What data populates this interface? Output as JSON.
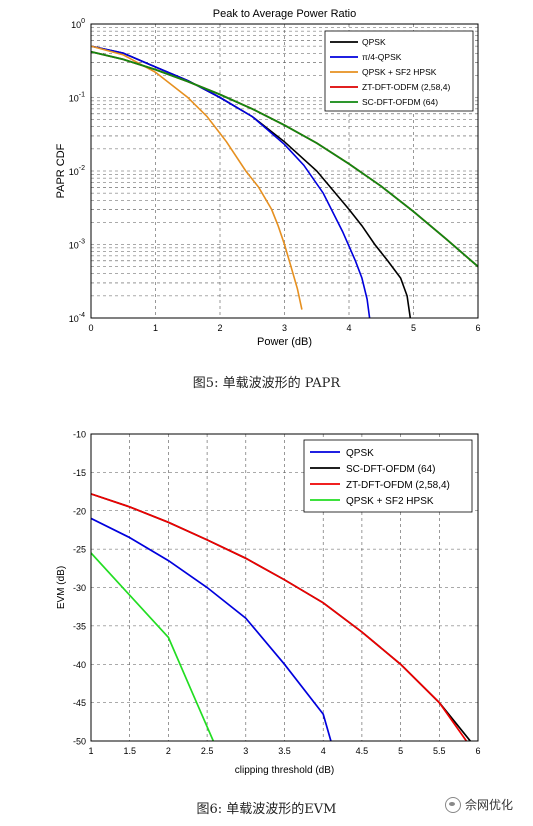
{
  "chart_data": [
    {
      "type": "line",
      "title": "Peak to Average Power Ratio",
      "xlabel": "Power (dB)",
      "ylabel": "PAPR CDF",
      "xlim": [
        0,
        6
      ],
      "ylim": [
        0.0001,
        1
      ],
      "yscale": "log",
      "grid": true,
      "legend_position": "top-right",
      "x_ticks": [
        "0",
        "1",
        "2",
        "3",
        "4",
        "5",
        "6"
      ],
      "y_tick_labels": [
        {
          "base": "10",
          "exp": "-4",
          "value": 0.0001
        },
        {
          "base": "10",
          "exp": "-3",
          "value": 0.001
        },
        {
          "base": "10",
          "exp": "-2",
          "value": 0.01
        },
        {
          "base": "10",
          "exp": "-1",
          "value": 0.1
        },
        {
          "base": "10",
          "exp": "0",
          "value": 1
        }
      ],
      "series": [
        {
          "name": "QPSK",
          "color": "#000000",
          "x": [
            0,
            0.5,
            1,
            1.5,
            2,
            2.5,
            3,
            3.5,
            4,
            4.2,
            4.4,
            4.6,
            4.8,
            4.9,
            4.95
          ],
          "y": [
            0.5,
            0.4,
            0.26,
            0.17,
            0.1,
            0.055,
            0.025,
            0.01,
            0.003,
            0.0018,
            0.001,
            0.0006,
            0.00035,
            0.0002,
            0.0001
          ]
        },
        {
          "name": "π/4-QPSK",
          "color": "#0000dd",
          "x": [
            0,
            0.5,
            1,
            1.5,
            2,
            2.5,
            3,
            3.3,
            3.6,
            3.9,
            4.1,
            4.2,
            4.28,
            4.32
          ],
          "y": [
            0.5,
            0.4,
            0.26,
            0.17,
            0.1,
            0.055,
            0.023,
            0.012,
            0.005,
            0.0015,
            0.0006,
            0.00035,
            0.00018,
            0.0001
          ]
        },
        {
          "name": "QPSK + SF2 HPSK",
          "color": "#e69020",
          "x": [
            0,
            0.5,
            1,
            1.5,
            1.8,
            2.1,
            2.4,
            2.6,
            2.8,
            2.9,
            3.0,
            3.1,
            3.2,
            3.27
          ],
          "y": [
            0.5,
            0.38,
            0.22,
            0.1,
            0.055,
            0.025,
            0.01,
            0.006,
            0.003,
            0.0018,
            0.001,
            0.0005,
            0.00025,
            0.00013
          ]
        },
        {
          "name": "ZT-DFT-ODFM (2,58,4)",
          "color": "#dd0000",
          "x": [
            0,
            0.5,
            1,
            1.5,
            2,
            2.5,
            3,
            3.5,
            4,
            4.5,
            5,
            5.5,
            6
          ],
          "y": [
            0.42,
            0.33,
            0.24,
            0.165,
            0.11,
            0.07,
            0.042,
            0.024,
            0.0125,
            0.0062,
            0.0028,
            0.0012,
            0.0005
          ]
        },
        {
          "name": "SC-DFT-OFDM (64)",
          "color": "#118811",
          "x": [
            0,
            0.5,
            1,
            1.5,
            2,
            2.5,
            3,
            3.5,
            4,
            4.5,
            5,
            5.5,
            6
          ],
          "y": [
            0.42,
            0.33,
            0.24,
            0.165,
            0.11,
            0.07,
            0.042,
            0.024,
            0.0125,
            0.0062,
            0.0028,
            0.0012,
            0.0005
          ]
        }
      ]
    },
    {
      "type": "line",
      "title": "",
      "xlabel": "clipping threshold (dB)",
      "ylabel": "EVM (dB)",
      "xlim": [
        1,
        6
      ],
      "ylim": [
        -50,
        -10
      ],
      "grid": true,
      "legend_position": "top-right",
      "x_ticks": [
        "1",
        "1.5",
        "2",
        "2.5",
        "3",
        "3.5",
        "4",
        "4.5",
        "5",
        "5.5",
        "6"
      ],
      "y_ticks": [
        "-10",
        "-15",
        "-20",
        "-25",
        "-30",
        "-35",
        "-40",
        "-45",
        "-50"
      ],
      "series": [
        {
          "name": "QPSK",
          "color": "#0000dd",
          "x": [
            1,
            1.5,
            2,
            2.5,
            3,
            3.5,
            4,
            4.1
          ],
          "y": [
            -21,
            -23.5,
            -26.5,
            -30,
            -34,
            -40,
            -46.5,
            -50
          ]
        },
        {
          "name": "SC-DFT-OFDM (64)",
          "color": "#000000",
          "x": [
            1,
            1.5,
            2,
            2.5,
            3,
            3.5,
            4,
            4.5,
            5,
            5.5,
            5.9
          ],
          "y": [
            -17.8,
            -19.5,
            -21.5,
            -23.8,
            -26.2,
            -29,
            -32,
            -35.8,
            -40,
            -45,
            -50
          ]
        },
        {
          "name": "ZT-DFT-OFDM (2,58,4)",
          "color": "#ee0000",
          "x": [
            1,
            1.5,
            2,
            2.5,
            3,
            3.5,
            4,
            4.5,
            5,
            5.5,
            5.85
          ],
          "y": [
            -17.8,
            -19.5,
            -21.5,
            -23.8,
            -26.2,
            -29,
            -32,
            -35.8,
            -40,
            -45,
            -50
          ]
        },
        {
          "name": "QPSK + SF2 HPSK",
          "color": "#22dd22",
          "x": [
            1,
            1.5,
            2,
            2.3,
            2.58
          ],
          "y": [
            -25.5,
            -31,
            -36.5,
            -43.5,
            -50
          ]
        }
      ]
    }
  ],
  "captions": {
    "fig5": "图5: 单载波波形的 PAPR",
    "fig6": "图6: 单载波波形的EVM"
  },
  "watermark": "佘网优化"
}
